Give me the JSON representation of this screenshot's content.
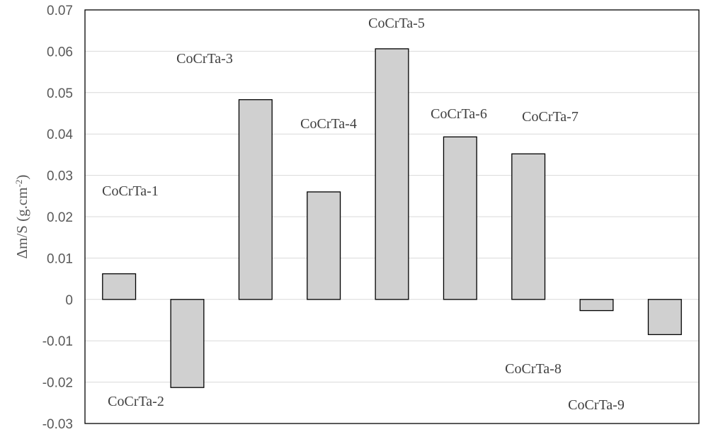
{
  "chart_data": {
    "type": "bar",
    "categories": [
      "CoCrTa-1",
      "CoCrTa-2",
      "CoCrTa-3",
      "CoCrTa-4",
      "CoCrTa-5",
      "CoCrTa-6",
      "CoCrTa-7",
      "CoCrTa-8",
      "CoCrTa-9"
    ],
    "values": [
      0.0062,
      -0.0213,
      0.0483,
      0.026,
      0.0606,
      0.0393,
      0.0352,
      -0.0027,
      -0.0085
    ],
    "ylabel_parts": [
      "Δm/S (g.cm",
      "-2",
      ")"
    ],
    "ylim": [
      -0.03,
      0.07
    ],
    "yticks": [
      "-0.03",
      "-0.02",
      "-0.01",
      "0",
      "0.01",
      "0.02",
      "0.03",
      "0.04",
      "0.05",
      "0.06",
      "0.07"
    ],
    "grid": true,
    "legend": "none",
    "colors": {
      "bar_fill": "#d0d0d0",
      "bar_stroke": "#000000",
      "grid": "#d9d9d9",
      "frame": "#000000"
    }
  }
}
